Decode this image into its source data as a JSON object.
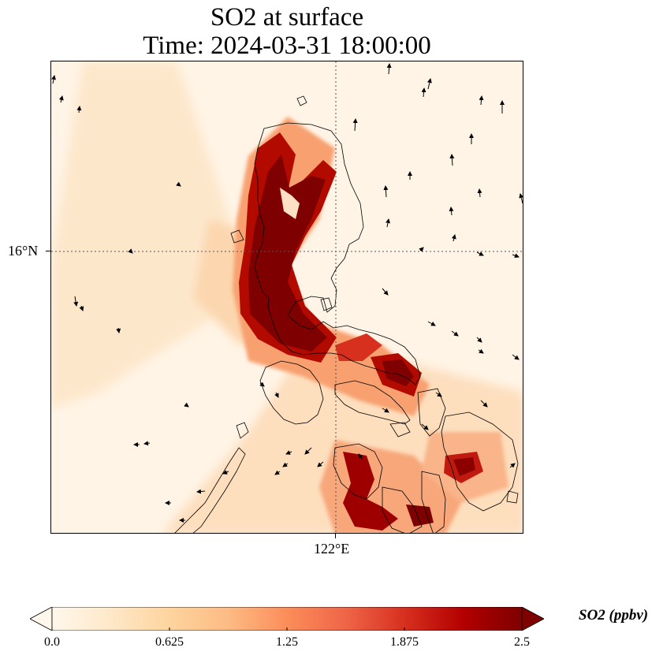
{
  "title": {
    "line1": "SO2 at surface",
    "line2": "Time: 2024-03-31 18:00:00"
  },
  "axes": {
    "lat_tick": "16°N",
    "lon_tick": "122°E"
  },
  "colorbar": {
    "label": "SO2 (ppbv)",
    "ticks": [
      "0.0",
      "0.625",
      "1.25",
      "1.875",
      "2.5"
    ],
    "tick_values": [
      0.0,
      0.625,
      1.25,
      1.875,
      2.5
    ],
    "range": [
      0.0,
      2.5
    ],
    "colormap": [
      "#fff7ec",
      "#fee8c8",
      "#fdd49e",
      "#fdbb84",
      "#fc8d59",
      "#ef6548",
      "#d7301f",
      "#b30000",
      "#7f0000"
    ]
  },
  "colors": {
    "background": "#fff4e6",
    "coastline": "#000000",
    "gridline": "#555555"
  }
}
